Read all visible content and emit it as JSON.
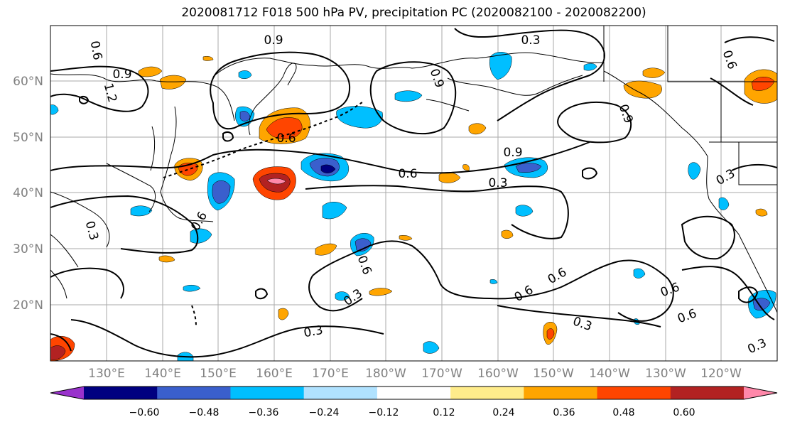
{
  "title": "2020081712 F018 500 hPa PV, precipitation PC (2020082100 - 2020082200)",
  "lat_labels": [
    "60°N",
    "50°N",
    "40°N",
    "30°N",
    "20°N"
  ],
  "lon_labels": [
    "130°E",
    "140°E",
    "150°E",
    "160°E",
    "170°E",
    "180°W",
    "170°W",
    "160°W",
    "150°W",
    "140°W",
    "130°W",
    "120°W"
  ],
  "contour_labels": [
    "0.9",
    "0.9",
    "0.3",
    "0.6",
    "0.9",
    "1.2",
    "0.6",
    "0.6",
    "0.3",
    "0.6",
    "0.9",
    "0.9",
    "0.3",
    "0.6",
    "0.3",
    "0.6",
    "0.6",
    "0.3",
    "0.3",
    "0.6",
    "0.6",
    "0.3",
    "0.3"
  ],
  "colorbar": {
    "tick_labels": [
      "−0.60",
      "−0.48",
      "−0.36",
      "−0.24",
      "−0.12",
      "0.12",
      "0.24",
      "0.36",
      "0.48",
      "0.60"
    ],
    "colors": [
      "#9932CC",
      "#000080",
      "#3A5FCD",
      "#00BFFF",
      "#B0E2FF",
      "#FFFFFF",
      "#FFEC8B",
      "#FFA500",
      "#FF4500",
      "#B22222",
      "#FF88AA"
    ]
  },
  "colors": {
    "coast": "#000000",
    "grid": "#aaaaaa",
    "axis_label": "#808080"
  }
}
